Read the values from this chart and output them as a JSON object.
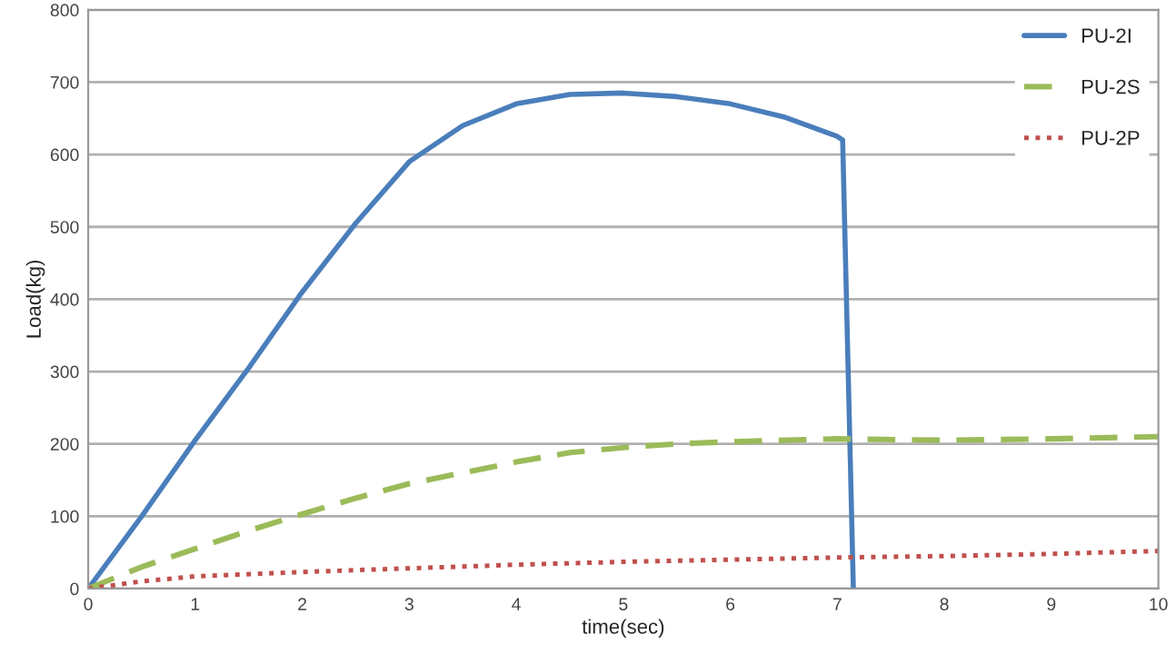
{
  "chart_data": {
    "type": "line",
    "xlabel": "time(sec)",
    "ylabel": "Load(kg)",
    "xlim": [
      0,
      10
    ],
    "xticks": [
      0,
      1,
      2,
      3,
      4,
      5,
      6,
      7,
      8,
      9,
      10
    ],
    "ylim": [
      0,
      800
    ],
    "yticks": [
      0,
      100,
      200,
      300,
      400,
      500,
      600,
      700,
      800
    ],
    "grid": "y",
    "legend": "top right",
    "series": [
      {
        "name": "PU-2I",
        "color": "#4a7ebb",
        "line_style": "solid",
        "x": [
          0,
          0.5,
          1,
          1.5,
          2,
          2.5,
          3,
          3.5,
          4,
          4.5,
          5,
          5.5,
          6,
          6.5,
          7,
          7.05,
          7.15
        ],
        "values": [
          0,
          100,
          205,
          305,
          410,
          505,
          590,
          640,
          670,
          683,
          685,
          680,
          670,
          652,
          625,
          620,
          0
        ]
      },
      {
        "name": "PU-2S",
        "color": "#9bbb59",
        "line_style": "dashed",
        "x": [
          0,
          0.5,
          1,
          1.5,
          2,
          2.5,
          3,
          3.5,
          4,
          4.5,
          5,
          5.5,
          6,
          7,
          8,
          9,
          10
        ],
        "values": [
          0,
          30,
          55,
          80,
          103,
          125,
          145,
          160,
          175,
          188,
          195,
          200,
          203,
          207,
          205,
          207,
          210
        ]
      },
      {
        "name": "PU-2P",
        "color": "#c0504d",
        "line_style": "dotted",
        "x": [
          0,
          0.5,
          1,
          2,
          3,
          4,
          5,
          6,
          7,
          8,
          9,
          10
        ],
        "values": [
          0,
          10,
          17,
          23,
          28,
          33,
          37,
          40,
          43,
          45,
          48,
          52
        ]
      }
    ]
  }
}
